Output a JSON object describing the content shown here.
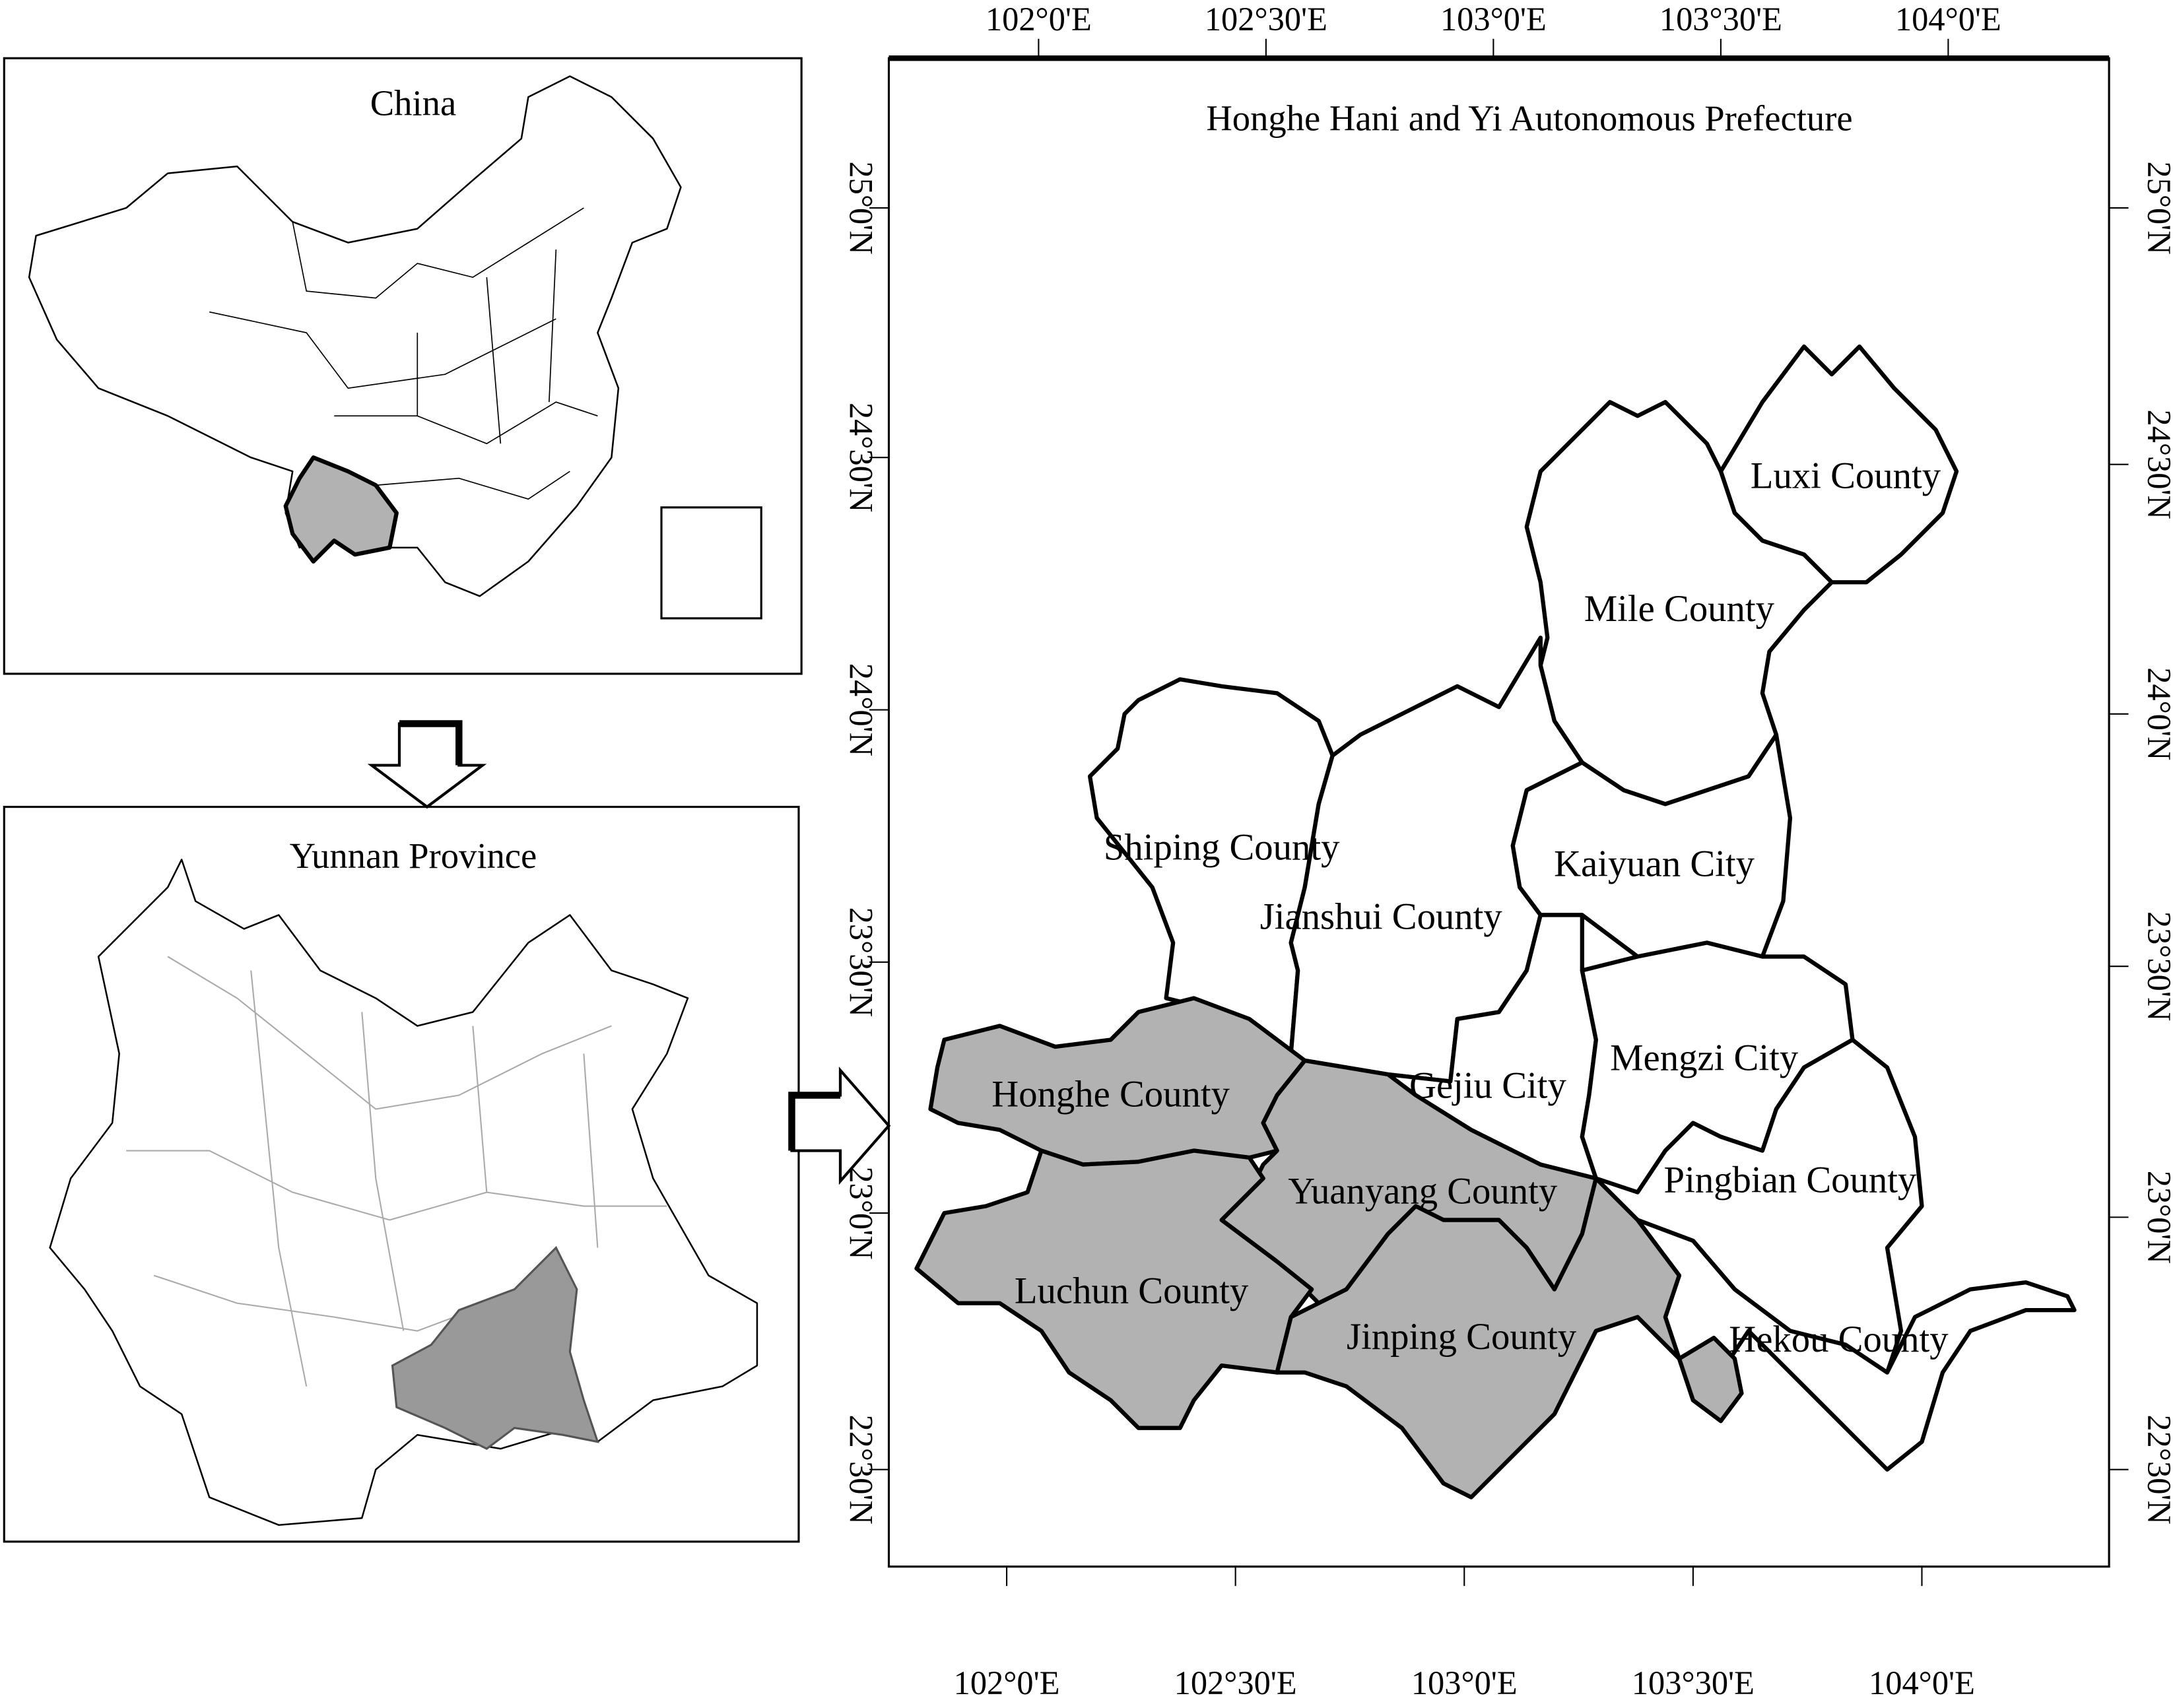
{
  "colors": {
    "highlight": "#b2b2b2",
    "unshaded": "#ffffff",
    "outline": "#000000",
    "yunnan_districts": "#aaaaaa"
  },
  "china_panel": {
    "title": "China",
    "highlighted_region": "Yunnan"
  },
  "yunnan_panel": {
    "title": "Yunnan Province",
    "highlighted_region": "Honghe Hani and Yi Autonomous Prefecture"
  },
  "main_map": {
    "title": "Honghe Hani and Yi Autonomous Prefecture",
    "top_ticks": [
      "102°0'E",
      "102°30'E",
      "103°0'E",
      "103°30'E",
      "104°0'E"
    ],
    "bottom_ticks": [
      "102°0'E",
      "102°30'E",
      "103°0'E",
      "103°30'E",
      "104°0'E"
    ],
    "left_ticks": [
      "25°0'N",
      "24°30'N",
      "24°0'N",
      "23°30'N",
      "23°0'N",
      "22°30'N"
    ],
    "right_ticks": [
      "25°0'N",
      "24°30'N",
      "24°0'N",
      "23°30'N",
      "23°0'N",
      "22°30'N"
    ],
    "counties": [
      {
        "name": "Luxi County",
        "shaded": false
      },
      {
        "name": "Mile County",
        "shaded": false
      },
      {
        "name": "Shiping County",
        "shaded": false
      },
      {
        "name": "Jianshui County",
        "shaded": false
      },
      {
        "name": "Kaiyuan City",
        "shaded": false
      },
      {
        "name": "Gejiu City",
        "shaded": false
      },
      {
        "name": "Mengzi City",
        "shaded": false
      },
      {
        "name": "Pingbian County",
        "shaded": false
      },
      {
        "name": "Hekou County",
        "shaded": false
      },
      {
        "name": "Honghe County",
        "shaded": true
      },
      {
        "name": "Yuanyang County",
        "shaded": true
      },
      {
        "name": "Luchun County",
        "shaded": true
      },
      {
        "name": "Jinping County",
        "shaded": true
      }
    ]
  }
}
